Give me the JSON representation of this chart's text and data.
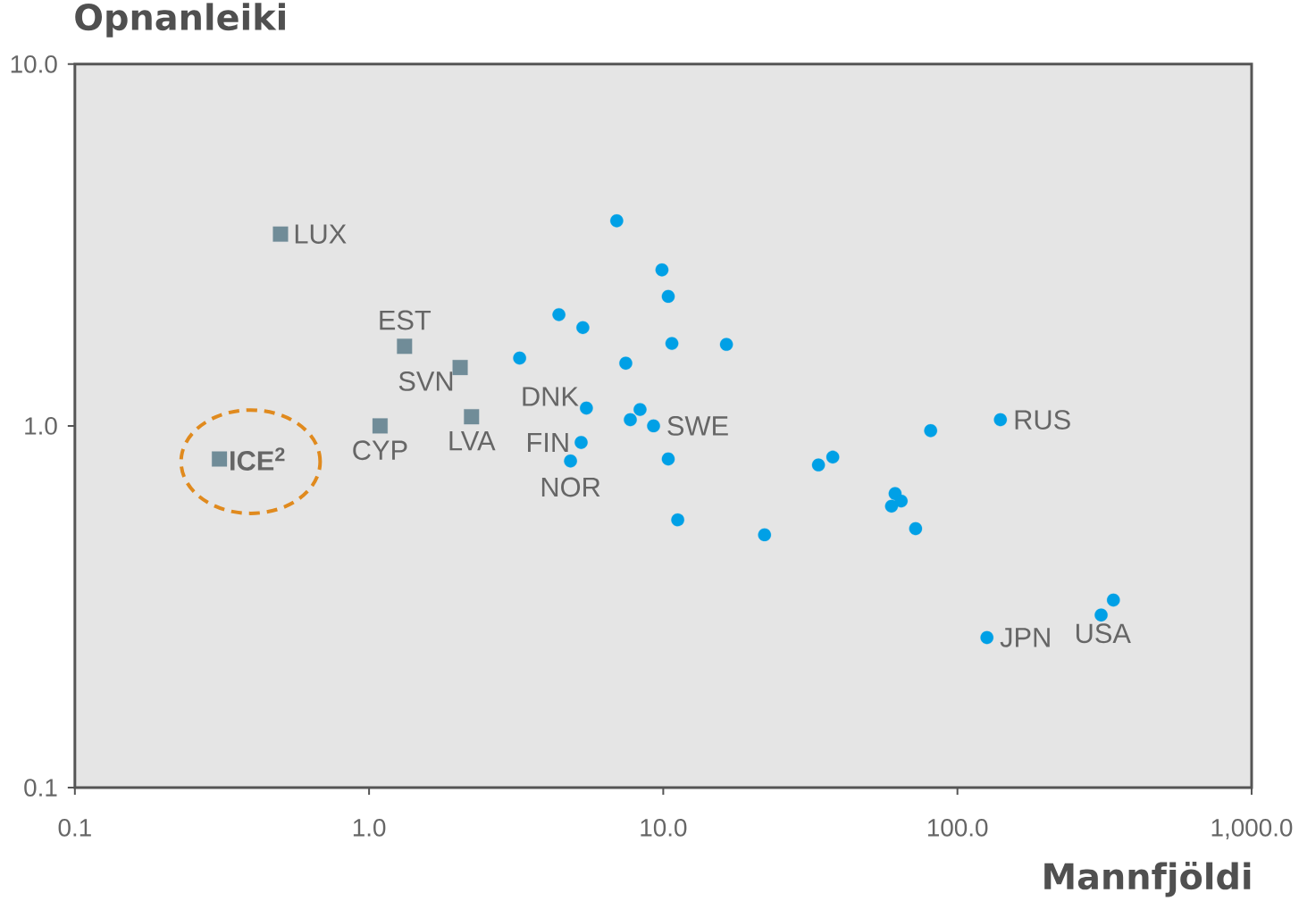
{
  "chart_data": {
    "type": "scatter",
    "ylabel": "Opnanleiki",
    "xlabel": "Mannfjöldi",
    "log": "xy",
    "xlim": [
      0.1,
      1000
    ],
    "ylim": [
      0.1,
      10
    ],
    "xticks": [
      {
        "value": 0.1,
        "label": "0.1"
      },
      {
        "value": 1,
        "label": "1.0"
      },
      {
        "value": 10,
        "label": "10.0"
      },
      {
        "value": 100,
        "label": "100.0"
      },
      {
        "value": 1000,
        "label": "1,000.0"
      }
    ],
    "yticks": [
      {
        "value": 0.1,
        "label": "0.1"
      },
      {
        "value": 1,
        "label": "1.0"
      },
      {
        "value": 10,
        "label": "10.0"
      }
    ],
    "series": [
      {
        "color": "#708c98",
        "marker": "square",
        "x": [
          0.5,
          1.32,
          2.04,
          1.09,
          2.23,
          0.31
        ],
        "values": [
          3.39,
          1.66,
          1.45,
          1.0,
          1.06,
          0.81
        ]
      },
      {
        "color": "#00a0e6",
        "marker": "circle",
        "x": [
          6.95,
          9.9,
          10.4,
          4.42,
          5.33,
          10.7,
          16.4,
          3.25,
          7.46,
          5.48,
          8.34,
          7.73,
          9.27,
          5.26,
          4.84,
          10.4,
          11.2,
          22.1,
          33.7,
          37.7,
          61.4,
          64.4,
          59.7,
          72.1,
          81.1,
          140,
          126,
          308,
          339
        ],
        "values": [
          3.69,
          2.7,
          2.28,
          2.03,
          1.87,
          1.69,
          1.68,
          1.54,
          1.49,
          1.12,
          1.11,
          1.04,
          1.0,
          0.9,
          0.8,
          0.81,
          0.55,
          0.5,
          0.78,
          0.82,
          0.65,
          0.62,
          0.6,
          0.52,
          0.97,
          1.04,
          0.26,
          0.3,
          0.33
        ]
      }
    ],
    "annotations": [
      {
        "text": "LUX",
        "x": 0.5,
        "y": 3.39
      },
      {
        "text": "EST",
        "x": 1.32,
        "y": 1.66
      },
      {
        "text": "SVN",
        "x": 2.04,
        "y": 1.45
      },
      {
        "text": "CYP",
        "x": 1.09,
        "y": 1.0
      },
      {
        "text": "LVA",
        "x": 2.23,
        "y": 1.06
      },
      {
        "text": "DNK",
        "x": 5.48,
        "y": 1.12
      },
      {
        "text": "FIN",
        "x": 5.26,
        "y": 0.9
      },
      {
        "text": "NOR",
        "x": 4.84,
        "y": 0.8
      },
      {
        "text": "SWE",
        "x": 9.27,
        "y": 1.0
      },
      {
        "text": "RUS",
        "x": 140,
        "y": 1.04
      },
      {
        "text": "JPN",
        "x": 126,
        "y": 0.26
      },
      {
        "text": "USA",
        "x": 339,
        "y": 0.33
      },
      {
        "text": "ICE$^{2}$",
        "x": 0.31,
        "y": 0.81
      }
    ]
  }
}
